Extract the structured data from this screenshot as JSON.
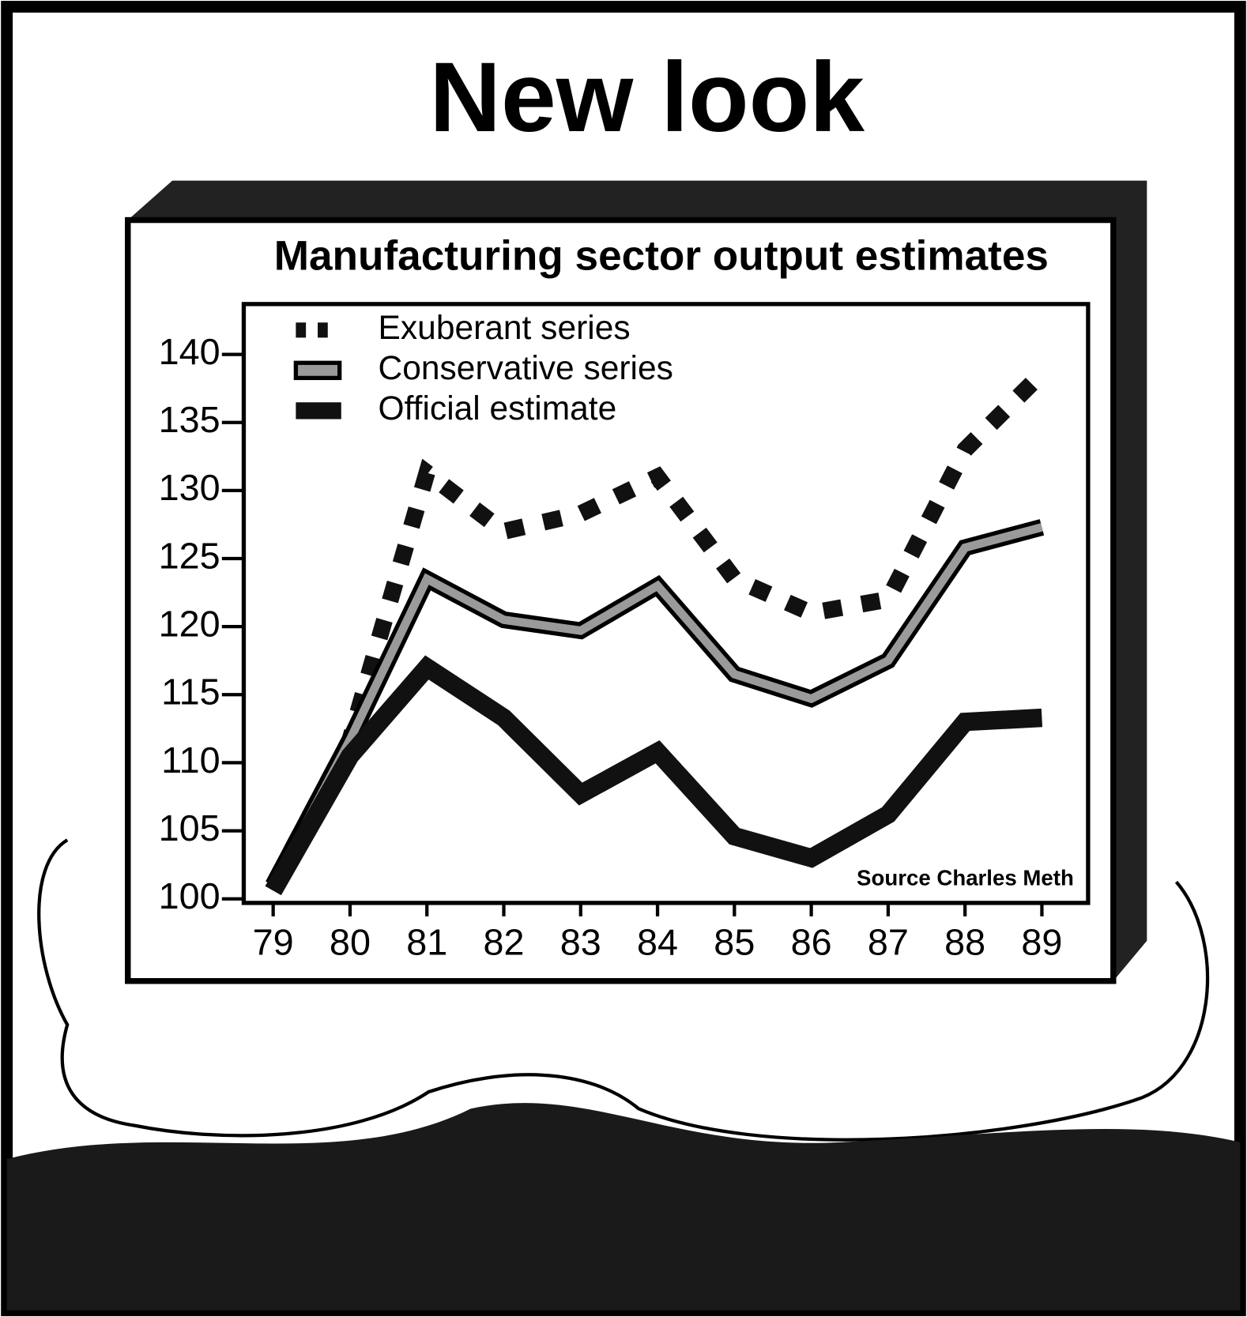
{
  "header": {
    "title": "New look"
  },
  "chart_data": {
    "type": "line",
    "title": "Manufacturing sector output estimates",
    "source": "Source  Charles Meth",
    "categories": [
      "79",
      "80",
      "81",
      "82",
      "83",
      "84",
      "85",
      "86",
      "87",
      "88",
      "89"
    ],
    "series": [
      {
        "name": "Exuberant series",
        "color": "#111111",
        "line_style": "dashed",
        "values": [
          101,
          111.7,
          131.3,
          127,
          128.3,
          131,
          123.5,
          121,
          122,
          133,
          138.6
        ]
      },
      {
        "name": "Conservative series",
        "color": "#9a9a9a",
        "line_style": "outlined",
        "values": [
          101,
          111.7,
          123.5,
          120.5,
          119.7,
          123,
          116.5,
          114.7,
          117.5,
          125.8,
          127.3
        ]
      },
      {
        "name": "Official estimate",
        "color": "#111111",
        "line_style": "solid",
        "values": [
          100.6,
          110.5,
          117,
          113.3,
          107.7,
          110.8,
          104.6,
          103,
          106.2,
          113,
          113.3
        ]
      }
    ],
    "ylim": [
      99.7,
      143.7
    ],
    "yticks": [
      100,
      105,
      110,
      115,
      120,
      125,
      130,
      135,
      140
    ],
    "legend": "upper-left"
  }
}
